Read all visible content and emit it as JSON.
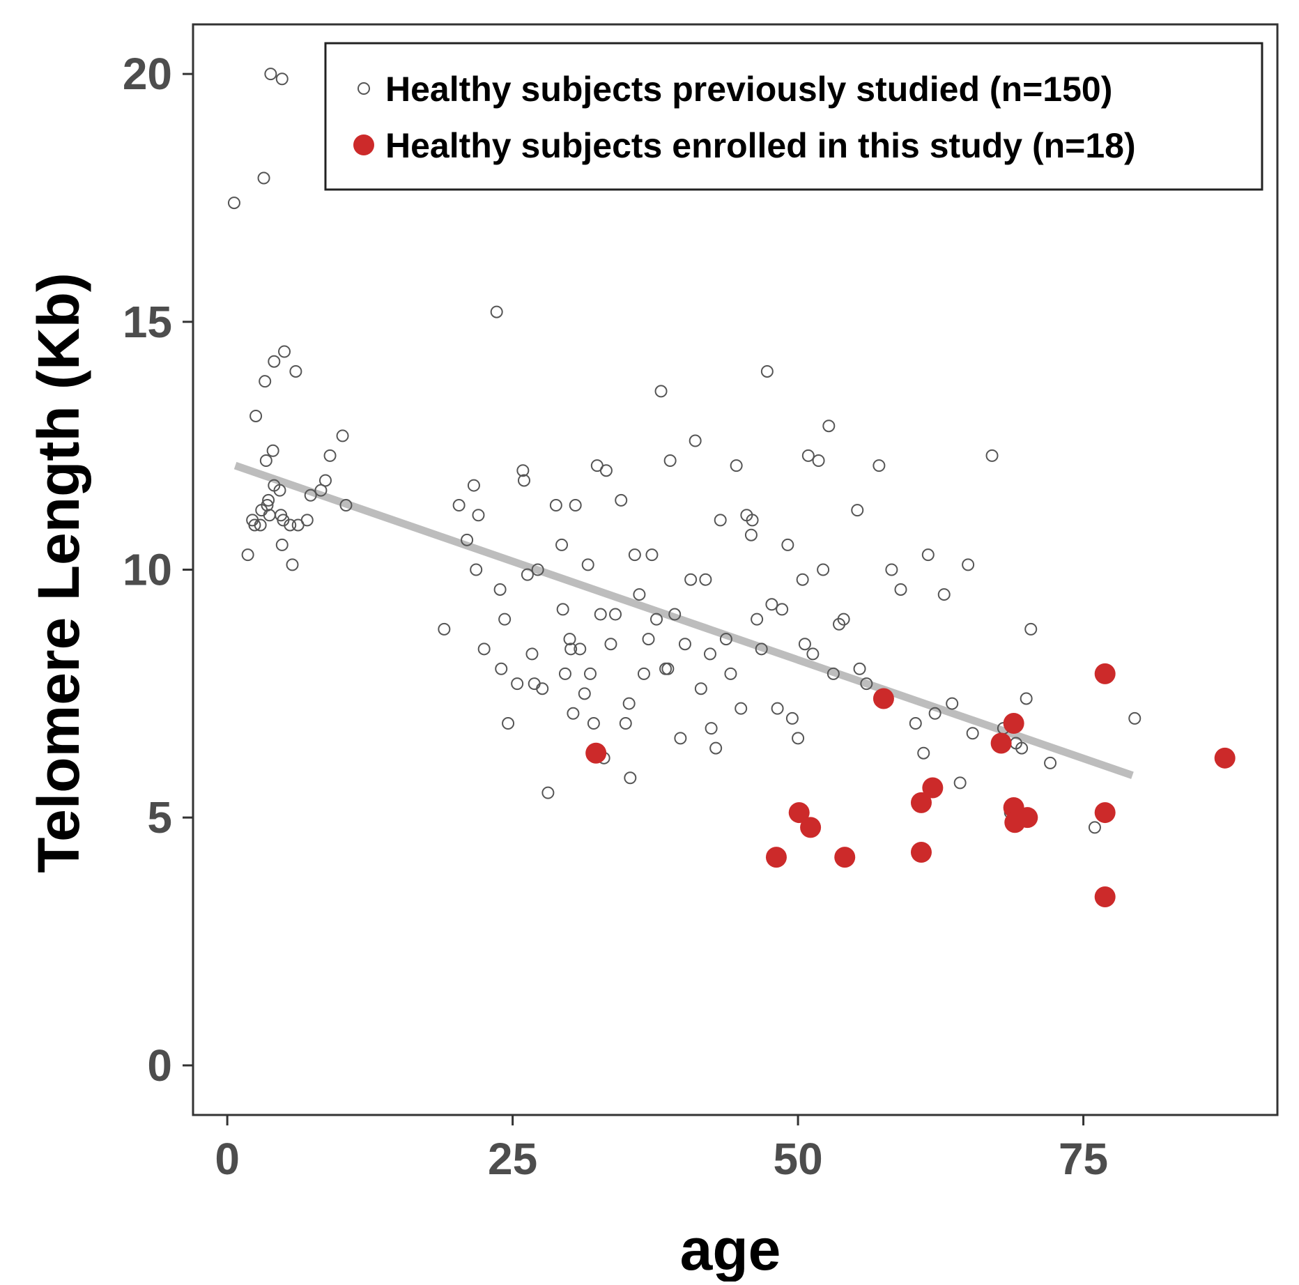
{
  "chart_data": {
    "type": "scatter",
    "title": "",
    "xlabel": "age",
    "ylabel": "Telomere Length (Kb)",
    "xlim": [
      -3,
      92
    ],
    "ylim": [
      -1,
      21
    ],
    "x_ticks": [
      0,
      25,
      50,
      75
    ],
    "x_tick_labels": [
      "0",
      "25",
      "50",
      "75"
    ],
    "y_ticks": [
      0,
      5,
      10,
      15,
      20
    ],
    "y_tick_labels": [
      "0",
      "5",
      "10",
      "15",
      "20"
    ],
    "grid": false,
    "legend_position": "top-right",
    "trend_line": {
      "x": [
        0.7,
        79.3
      ],
      "y": [
        12.1,
        5.85
      ],
      "color": "#bdbdbd"
    },
    "colors": {
      "previous": "#555555",
      "enrolled": "#cc2a2a",
      "trend": "#bdbdbd",
      "axis": "#333333"
    },
    "series": [
      {
        "name": "Healthy subjects previously studied (n=150)",
        "marker": "open-circle",
        "x": [
          0.6,
          3.2,
          3.8,
          4.8,
          3.3,
          5.0,
          6.0,
          2.5,
          3.4,
          3.6,
          4.0,
          1.8,
          2.2,
          2.9,
          3.0,
          3.5,
          3.7,
          4.1,
          4.6,
          4.9,
          5.5,
          6.2,
          7.0,
          7.3,
          8.2,
          8.6,
          9.0,
          10.1,
          10.4,
          2.4,
          4.8,
          5.7,
          4.1,
          4.7,
          23.6,
          19.0,
          20.3,
          21.0,
          21.6,
          21.8,
          22.0,
          22.5,
          23.9,
          24.0,
          24.3,
          24.6,
          25.4,
          25.9,
          26.0,
          26.3,
          26.7,
          26.9,
          27.2,
          27.6,
          28.1,
          28.8,
          29.3,
          29.4,
          29.6,
          30.0,
          30.3,
          30.5,
          30.9,
          31.3,
          31.6,
          32.1,
          32.4,
          32.7,
          33.2,
          33.6,
          34.0,
          34.5,
          34.9,
          35.2,
          35.7,
          36.1,
          36.5,
          36.9,
          37.2,
          37.6,
          38.0,
          38.4,
          38.8,
          39.2,
          39.7,
          40.1,
          40.6,
          41.0,
          41.5,
          41.9,
          42.3,
          42.8,
          43.2,
          43.7,
          44.1,
          44.6,
          45.0,
          45.5,
          45.9,
          46.4,
          46.8,
          47.3,
          47.7,
          48.2,
          48.6,
          49.1,
          49.5,
          50.0,
          50.4,
          50.9,
          51.3,
          51.8,
          52.2,
          52.7,
          53.1,
          53.6,
          54.0,
          55.2,
          56.0,
          57.1,
          58.2,
          59.0,
          60.3,
          61.0,
          61.4,
          62.0,
          62.8,
          63.5,
          64.2,
          64.9,
          65.3,
          67.0,
          68.0,
          68.6,
          69.1,
          69.6,
          70.0,
          70.4,
          72.1,
          76.0,
          79.5,
          30.1,
          31.8,
          33.0,
          35.3,
          38.6,
          42.4,
          46.0,
          50.6,
          55.4
        ],
        "y": [
          17.4,
          17.9,
          20.0,
          19.9,
          13.8,
          14.4,
          14.0,
          13.1,
          12.2,
          11.4,
          12.4,
          10.3,
          11.0,
          10.9,
          11.2,
          11.3,
          11.1,
          11.7,
          11.6,
          11.0,
          10.9,
          10.9,
          11.0,
          11.5,
          11.6,
          11.8,
          12.3,
          12.7,
          11.3,
          10.9,
          10.5,
          10.1,
          14.2,
          11.1,
          15.2,
          8.8,
          11.3,
          10.6,
          11.7,
          10.0,
          11.1,
          8.4,
          9.6,
          8.0,
          9.0,
          6.9,
          7.7,
          12.0,
          11.8,
          9.9,
          8.3,
          7.7,
          10.0,
          7.6,
          5.5,
          11.3,
          10.5,
          9.2,
          7.9,
          8.6,
          7.1,
          11.3,
          8.4,
          7.5,
          10.1,
          6.9,
          12.1,
          9.1,
          12.0,
          8.5,
          9.1,
          11.4,
          6.9,
          7.3,
          10.3,
          9.5,
          7.9,
          8.6,
          10.3,
          9.0,
          13.6,
          8.0,
          12.2,
          9.1,
          6.6,
          8.5,
          9.8,
          12.6,
          7.6,
          9.8,
          8.3,
          6.4,
          11.0,
          8.6,
          7.9,
          12.1,
          7.2,
          11.1,
          10.7,
          9.0,
          8.4,
          14.0,
          9.3,
          7.2,
          9.2,
          10.5,
          7.0,
          6.6,
          9.8,
          12.3,
          8.3,
          12.2,
          10.0,
          12.9,
          7.9,
          8.9,
          9.0,
          11.2,
          7.7,
          12.1,
          10.0,
          9.6,
          6.9,
          6.3,
          10.3,
          7.1,
          9.5,
          7.3,
          5.7,
          10.1,
          6.7,
          12.3,
          6.8,
          5.1,
          6.5,
          6.4,
          7.4,
          8.8,
          6.1,
          4.8,
          7.0,
          8.4,
          7.9,
          6.2,
          5.8,
          8.0,
          6.8,
          11.0,
          8.5,
          8.0
        ],
        "color": "#555555"
      },
      {
        "name": "Healthy subjects enrolled in this study (n=18)",
        "marker": "filled-circle",
        "x": [
          32.3,
          48.1,
          50.1,
          51.1,
          54.1,
          57.5,
          60.8,
          61.8,
          60.8,
          67.8,
          68.9,
          68.9,
          69.0,
          70.1,
          76.9,
          76.9,
          76.9,
          87.4
        ],
        "y": [
          6.3,
          4.2,
          5.1,
          4.8,
          4.2,
          7.4,
          5.3,
          5.6,
          4.3,
          6.5,
          6.9,
          5.2,
          4.9,
          5.0,
          7.9,
          5.1,
          3.4,
          6.2
        ],
        "color": "#cc2a2a"
      }
    ]
  }
}
